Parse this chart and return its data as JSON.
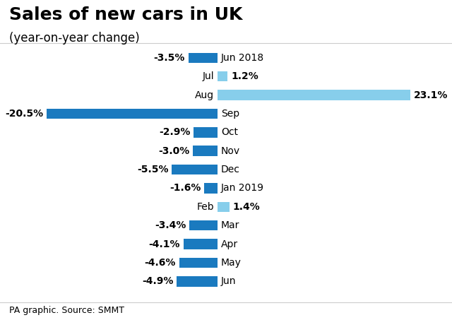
{
  "title": "Sales of new cars in UK",
  "subtitle": "(year-on-year change)",
  "footer": "PA graphic. Source: SMMT",
  "labels": [
    "Jun 2018",
    "Jul",
    "Aug",
    "Sep",
    "Oct",
    "Nov",
    "Dec",
    "Jan 2019",
    "Feb",
    "Mar",
    "Apr",
    "May",
    "Jun"
  ],
  "values": [
    -3.5,
    1.2,
    23.1,
    -20.5,
    -2.9,
    -3.0,
    -5.5,
    -1.6,
    1.4,
    -3.4,
    -4.1,
    -4.6,
    -4.9
  ],
  "colors": [
    "#1a7abf",
    "#87ceeb",
    "#87ceeb",
    "#1a7abf",
    "#1a7abf",
    "#1a7abf",
    "#1a7abf",
    "#1a7abf",
    "#87ceeb",
    "#1a7abf",
    "#1a7abf",
    "#1a7abf",
    "#1a7abf"
  ],
  "xlim": [
    -25,
    27
  ],
  "bar_height": 0.55,
  "title_fontsize": 18,
  "subtitle_fontsize": 12,
  "label_fontsize": 10,
  "value_fontsize": 10,
  "footer_fontsize": 9,
  "background_color": "#ffffff",
  "value_format": [
    "-3.5%",
    "1.2%",
    "23.1%",
    "-20.5%",
    "-2.9%",
    "-3.0%",
    "-5.5%",
    "-1.6%",
    "1.4%",
    "-3.4%",
    "-4.1%",
    "-4.6%",
    "-4.9%"
  ]
}
